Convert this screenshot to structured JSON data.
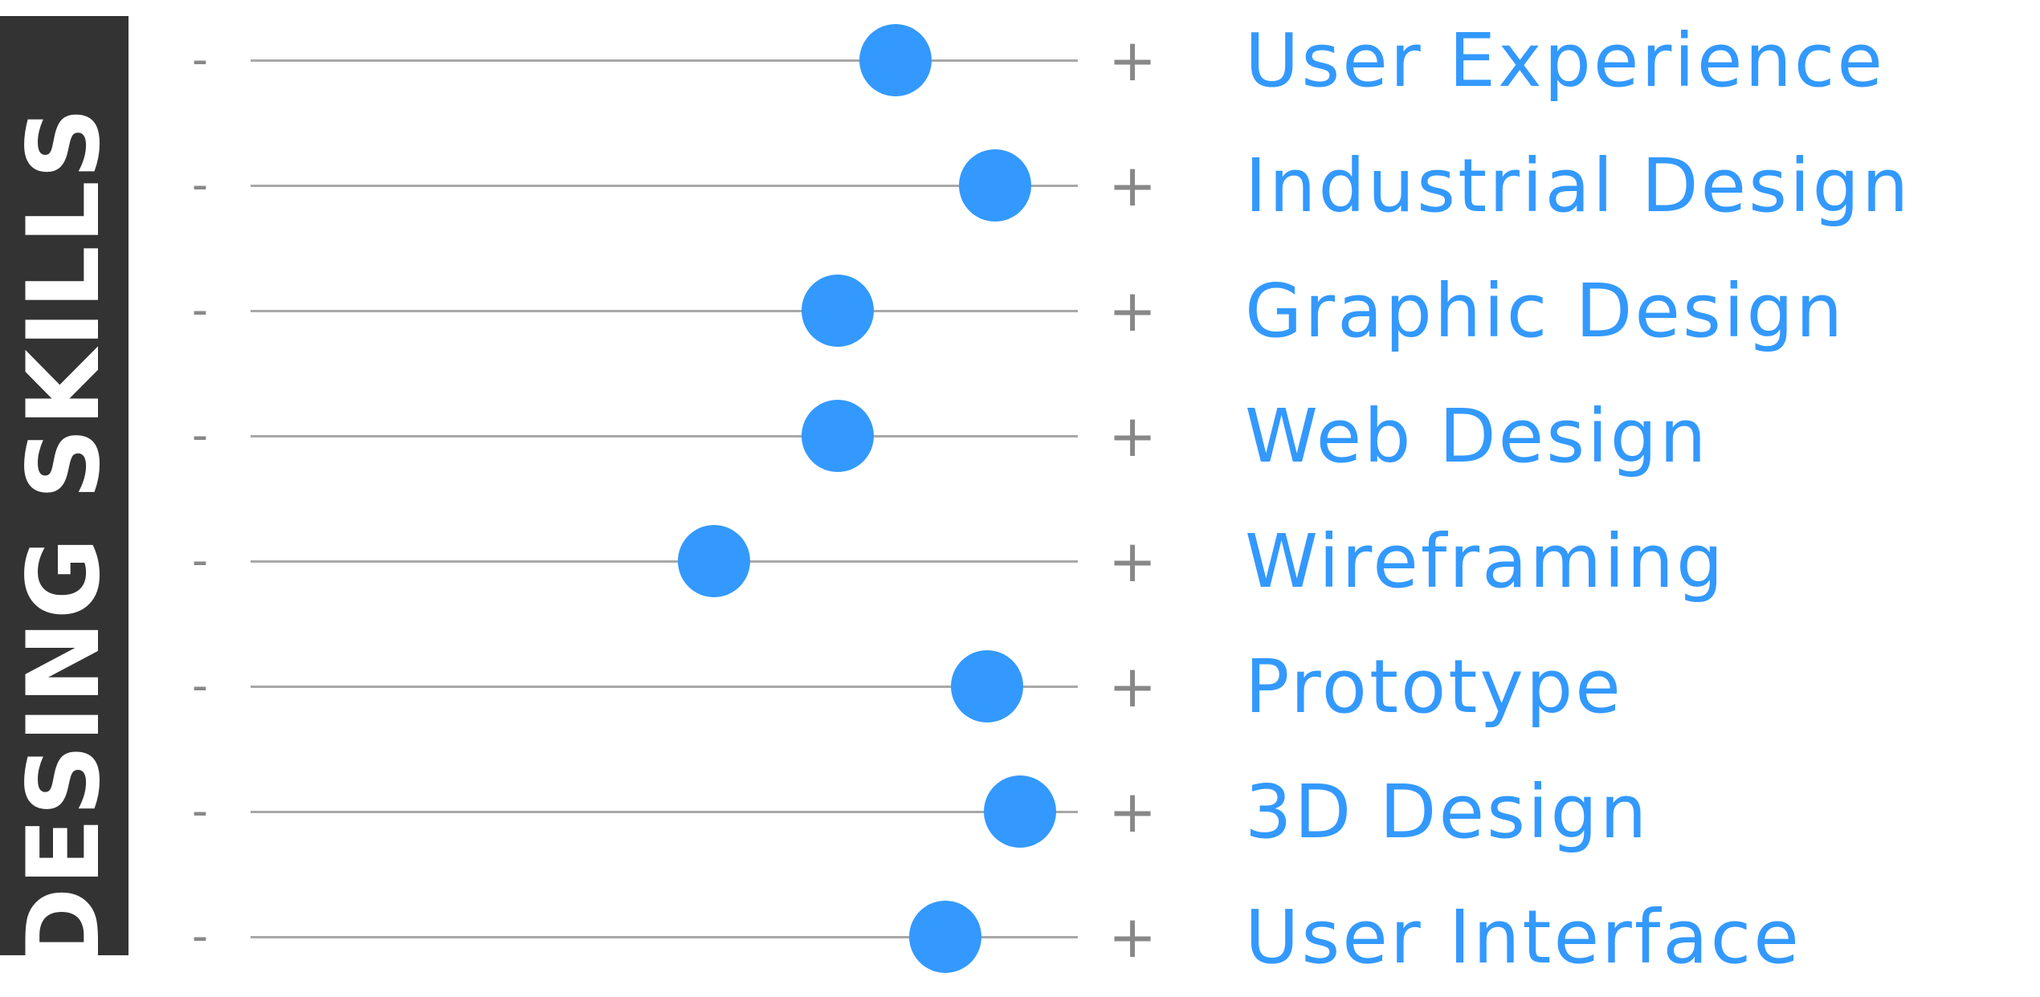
{
  "title": "DESING SKILLS",
  "colors": {
    "accent": "#3399ff",
    "title_bg": "#333333",
    "track": "#a8a8a8",
    "sign": "#888888"
  },
  "controls": {
    "minus_label": "-",
    "plus_label": "+"
  },
  "skills": [
    {
      "label": "User Experience",
      "level": 0.78
    },
    {
      "label": "Industrial Design",
      "level": 0.9
    },
    {
      "label": "Graphic Design",
      "level": 0.71
    },
    {
      "label": "Web Design",
      "level": 0.71
    },
    {
      "label": "Wireframing",
      "level": 0.56
    },
    {
      "label": "Prototype",
      "level": 0.89
    },
    {
      "label": "3D Design",
      "level": 0.93
    },
    {
      "label": "User Interface",
      "level": 0.84
    }
  ]
}
